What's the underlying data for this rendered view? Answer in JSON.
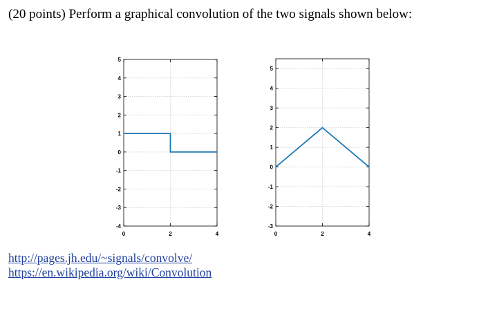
{
  "problem": {
    "text": "(20 points) Perform a graphical convolution of the two signals shown below:"
  },
  "links": [
    {
      "text": "http://pages.jh.edu/~signals/convolve/"
    },
    {
      "text": "https://en.wikipedia.org/wiki/Convolution"
    }
  ],
  "colors": {
    "line": "#1f77b4",
    "grid": "#d8d8d8",
    "axis": "#000000"
  },
  "chart_data": [
    {
      "type": "line",
      "x_ticks": [
        0,
        2,
        4
      ],
      "y_ticks": [
        -4,
        -3,
        -2,
        -1,
        0,
        1,
        2,
        3,
        4,
        5
      ],
      "xlim": [
        0,
        4
      ],
      "ylim": [
        -4,
        5
      ],
      "grid": true,
      "series": [
        {
          "x": [
            0,
            2,
            2,
            4
          ],
          "y": [
            1,
            1,
            0,
            0
          ]
        }
      ]
    },
    {
      "type": "line",
      "x_ticks": [
        0,
        2,
        4
      ],
      "y_ticks": [
        -3,
        -2,
        -1,
        0,
        1,
        2,
        3,
        4,
        5
      ],
      "xlim": [
        0,
        4
      ],
      "ylim": [
        -3,
        5.5
      ],
      "grid": true,
      "series": [
        {
          "x": [
            0,
            2,
            4
          ],
          "y": [
            0,
            2,
            0
          ]
        }
      ]
    }
  ]
}
